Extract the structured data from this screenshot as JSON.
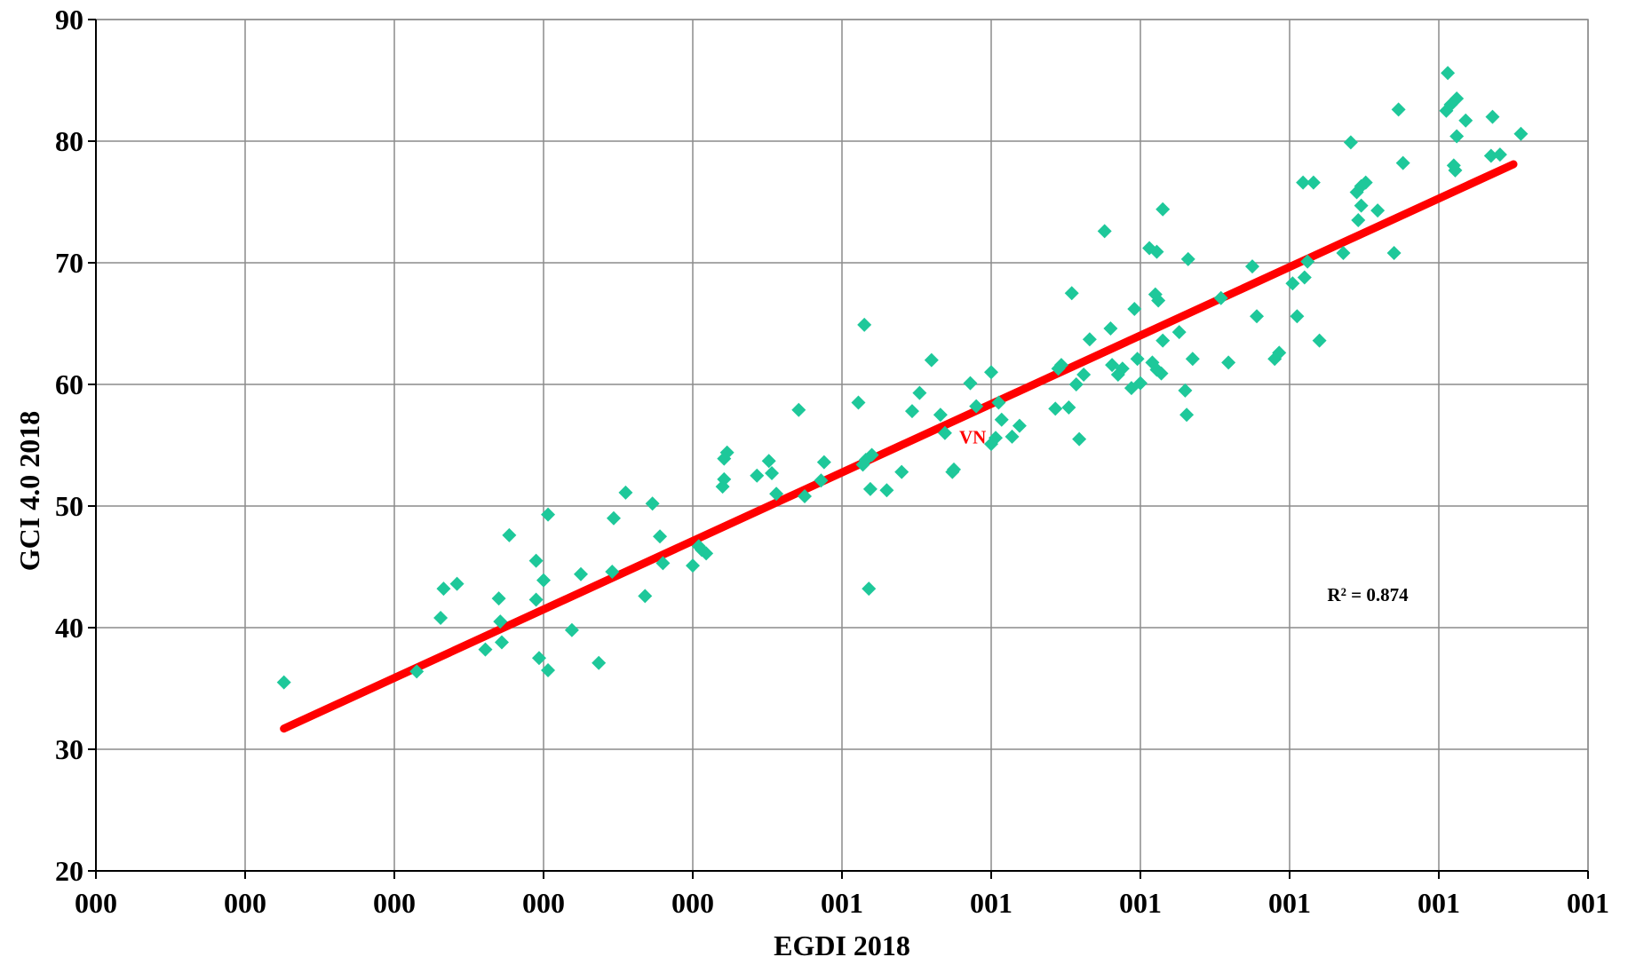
{
  "chart_data": {
    "type": "scatter",
    "title": "",
    "xlabel": "EGDI 2018",
    "ylabel": "GCI 4.0 2018",
    "x_tick_labels": [
      "000",
      "000",
      "000",
      "000",
      "000",
      "001",
      "001",
      "001",
      "001",
      "001",
      "001"
    ],
    "xlim": [
      0.0,
      1.0
    ],
    "ylim": [
      20,
      90
    ],
    "y_ticks": [
      20,
      30,
      40,
      50,
      60,
      70,
      80,
      90
    ],
    "grid": true,
    "legend": "none",
    "colors": {
      "points": "#1ec89a",
      "trendline": "#ff0000",
      "grid": "#8c8c8c",
      "annotation": "#ff0000"
    },
    "series": [
      {
        "values": [
          [
            0.126,
            35.5
          ],
          [
            0.215,
            36.4
          ],
          [
            0.231,
            40.8
          ],
          [
            0.233,
            43.2
          ],
          [
            0.242,
            43.6
          ],
          [
            0.261,
            38.2
          ],
          [
            0.27,
            42.4
          ],
          [
            0.271,
            40.5
          ],
          [
            0.272,
            38.8
          ],
          [
            0.277,
            47.6
          ],
          [
            0.295,
            45.5
          ],
          [
            0.295,
            42.3
          ],
          [
            0.297,
            37.5
          ],
          [
            0.3,
            43.9
          ],
          [
            0.303,
            36.5
          ],
          [
            0.303,
            49.3
          ],
          [
            0.319,
            39.8
          ],
          [
            0.325,
            44.4
          ],
          [
            0.337,
            37.1
          ],
          [
            0.346,
            44.6
          ],
          [
            0.347,
            49.0
          ],
          [
            0.355,
            51.1
          ],
          [
            0.368,
            42.6
          ],
          [
            0.373,
            50.2
          ],
          [
            0.378,
            47.5
          ],
          [
            0.38,
            45.3
          ],
          [
            0.4,
            45.1
          ],
          [
            0.404,
            46.7
          ],
          [
            0.406,
            46.4
          ],
          [
            0.409,
            46.1
          ],
          [
            0.42,
            51.6
          ],
          [
            0.421,
            52.2
          ],
          [
            0.421,
            53.9
          ],
          [
            0.423,
            54.4
          ],
          [
            0.443,
            52.5
          ],
          [
            0.451,
            53.7
          ],
          [
            0.453,
            52.7
          ],
          [
            0.456,
            51.0
          ],
          [
            0.471,
            57.9
          ],
          [
            0.475,
            50.8
          ],
          [
            0.486,
            52.1
          ],
          [
            0.488,
            53.6
          ],
          [
            0.511,
            58.5
          ],
          [
            0.514,
            53.4
          ],
          [
            0.515,
            64.9
          ],
          [
            0.516,
            53.8
          ],
          [
            0.518,
            43.2
          ],
          [
            0.519,
            51.4
          ],
          [
            0.52,
            54.2
          ],
          [
            0.53,
            51.3
          ],
          [
            0.54,
            52.8
          ],
          [
            0.547,
            57.8
          ],
          [
            0.552,
            59.3
          ],
          [
            0.56,
            62.0
          ],
          [
            0.566,
            57.5
          ],
          [
            0.569,
            56.0
          ],
          [
            0.574,
            52.8
          ],
          [
            0.575,
            53.0
          ],
          [
            0.586,
            60.1
          ],
          [
            0.6,
            61.0
          ],
          [
            0.6,
            55.1
          ],
          [
            0.603,
            55.6
          ],
          [
            0.605,
            58.5
          ],
          [
            0.607,
            57.1
          ],
          [
            0.614,
            55.7
          ],
          [
            0.619,
            56.6
          ],
          [
            0.643,
            58.0
          ],
          [
            0.645,
            61.3
          ],
          [
            0.647,
            61.6
          ],
          [
            0.652,
            58.1
          ],
          [
            0.654,
            67.5
          ],
          [
            0.657,
            60.0
          ],
          [
            0.659,
            55.5
          ],
          [
            0.662,
            60.8
          ],
          [
            0.666,
            63.7
          ],
          [
            0.676,
            72.6
          ],
          [
            0.68,
            64.6
          ],
          [
            0.681,
            61.6
          ],
          [
            0.685,
            60.8
          ],
          [
            0.688,
            61.3
          ],
          [
            0.694,
            59.7
          ],
          [
            0.696,
            66.2
          ],
          [
            0.698,
            62.1
          ],
          [
            0.7,
            60.1
          ],
          [
            0.706,
            71.2
          ],
          [
            0.708,
            61.8
          ],
          [
            0.71,
            67.4
          ],
          [
            0.711,
            70.9
          ],
          [
            0.711,
            61.2
          ],
          [
            0.712,
            66.9
          ],
          [
            0.714,
            60.9
          ],
          [
            0.715,
            74.4
          ],
          [
            0.715,
            63.6
          ],
          [
            0.726,
            64.3
          ],
          [
            0.73,
            59.5
          ],
          [
            0.731,
            57.5
          ],
          [
            0.732,
            70.3
          ],
          [
            0.735,
            62.1
          ],
          [
            0.754,
            67.1
          ],
          [
            0.759,
            61.8
          ],
          [
            0.775,
            69.7
          ],
          [
            0.778,
            65.6
          ],
          [
            0.79,
            62.1
          ],
          [
            0.793,
            62.6
          ],
          [
            0.802,
            68.3
          ],
          [
            0.805,
            65.6
          ],
          [
            0.809,
            76.6
          ],
          [
            0.81,
            68.8
          ],
          [
            0.812,
            70.1
          ],
          [
            0.816,
            76.6
          ],
          [
            0.82,
            63.6
          ],
          [
            0.836,
            70.8
          ],
          [
            0.841,
            79.9
          ],
          [
            0.845,
            75.8
          ],
          [
            0.846,
            73.5
          ],
          [
            0.848,
            76.3
          ],
          [
            0.848,
            74.7
          ],
          [
            0.851,
            76.6
          ],
          [
            0.859,
            74.3
          ],
          [
            0.87,
            70.8
          ],
          [
            0.873,
            82.6
          ],
          [
            0.876,
            78.2
          ],
          [
            0.905,
            82.5
          ],
          [
            0.906,
            85.6
          ],
          [
            0.908,
            83.0
          ],
          [
            0.91,
            78.0
          ],
          [
            0.911,
            77.6
          ],
          [
            0.912,
            83.5
          ],
          [
            0.912,
            80.4
          ],
          [
            0.918,
            81.7
          ],
          [
            0.935,
            78.8
          ],
          [
            0.936,
            82.0
          ],
          [
            0.941,
            78.9
          ],
          [
            0.955,
            80.6
          ]
        ]
      }
    ],
    "trendline": {
      "x": [
        0.126,
        0.95
      ],
      "y": [
        31.7,
        78.1
      ]
    },
    "highlight": {
      "label": "VN",
      "x": 0.59,
      "y": 58.2
    },
    "annotations": [
      {
        "text": "R² = 0.874"
      }
    ]
  }
}
